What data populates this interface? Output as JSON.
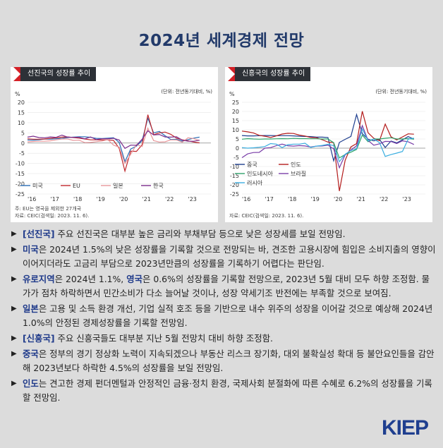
{
  "title": "2024년 세계경제 전망",
  "charts": [
    {
      "tag": "선진국의 성장률 추이",
      "y_unit_label": "%",
      "unit_note": "(단위: 전년동기대비, %)",
      "footnote1": "주: EU는 영국을 제외한 27개국",
      "footnote2": "자료: CEIC(검색일: 2023. 11. 6).",
      "y_ticks": [
        "20",
        "15",
        "10",
        "5",
        "0",
        "-5",
        "-10",
        "-15",
        "-20",
        "-25"
      ],
      "x_ticks": [
        "'16",
        "'17",
        "'18",
        "'19",
        "'20",
        "'21",
        "'22",
        "'23"
      ]
    },
    {
      "tag": "신흥국의 성장률 추이",
      "y_unit_label": "%",
      "unit_note": "(단위: 전년동기대비, %)",
      "footnote1": "",
      "footnote2": "자료: CEIC(검색일: 2023. 11. 6).",
      "y_ticks": [
        "25",
        "20",
        "15",
        "10",
        "5",
        "0",
        "-5",
        "-10",
        "-15",
        "-20",
        "-25"
      ],
      "x_ticks": [
        "'16",
        "'17",
        "'18",
        "'19",
        "'20",
        "'21",
        "'22",
        "'23"
      ]
    }
  ],
  "colors": {
    "us": "#2a6db5",
    "eu": "#c0282d",
    "jp": "#e8979b",
    "kr": "#7b2c8c",
    "cn": "#1f3f8f",
    "in": "#b31b1b",
    "id": "#2fa36b",
    "br": "#7a3ea8",
    "ru": "#3aaee0"
  },
  "chart_data": [
    {
      "type": "line",
      "title": "선진국의 성장률 추이",
      "ylabel": "%",
      "ylim": [
        -25,
        20
      ],
      "x": [
        2016.0,
        2016.25,
        2016.5,
        2016.75,
        2017.0,
        2017.25,
        2017.5,
        2017.75,
        2018.0,
        2018.25,
        2018.5,
        2018.75,
        2019.0,
        2019.25,
        2019.5,
        2019.75,
        2020.0,
        2020.25,
        2020.5,
        2020.75,
        2021.0,
        2021.25,
        2021.5,
        2021.75,
        2022.0,
        2022.25,
        2022.5,
        2022.75,
        2023.0,
        2023.25,
        2023.5
      ],
      "x_tick_labels": [
        "'16",
        "'17",
        "'18",
        "'19",
        "'20",
        "'21",
        "'22",
        "'23"
      ],
      "legend_position": "bottom-left",
      "grid": true,
      "series": [
        {
          "name": "미국",
          "color_key": "us",
          "values": [
            1.5,
            1.4,
            1.6,
            2.0,
            1.9,
            2.1,
            2.3,
            2.7,
            2.9,
            3.1,
            3.1,
            2.8,
            2.3,
            2.2,
            2.4,
            2.6,
            0.3,
            -9.1,
            -2.9,
            -1.5,
            1.2,
            12.2,
            5.0,
            5.7,
            3.6,
            1.8,
            1.9,
            0.9,
            1.7,
            2.4,
            2.9
          ]
        },
        {
          "name": "EU",
          "color_key": "eu",
          "values": [
            2.1,
            1.9,
            1.9,
            2.0,
            2.3,
            2.6,
            2.9,
            3.0,
            2.7,
            2.4,
            2.0,
            1.6,
            1.6,
            1.5,
            1.6,
            1.3,
            -2.6,
            -13.8,
            -4.0,
            -4.1,
            -0.8,
            13.9,
            4.1,
            5.0,
            5.4,
            4.3,
            2.4,
            1.6,
            1.1,
            0.5,
            0.1
          ]
        },
        {
          "name": "일본",
          "color_key": "jp",
          "values": [
            0.6,
            0.8,
            0.9,
            0.9,
            1.1,
            1.6,
            2.0,
            2.0,
            1.3,
            1.4,
            0.2,
            0.3,
            0.7,
            1.0,
            1.7,
            -1.0,
            -2.0,
            -10.0,
            -5.5,
            -0.8,
            -1.7,
            7.3,
            1.2,
            0.5,
            0.6,
            1.6,
            1.5,
            0.4,
            2.6,
            2.2,
            1.2
          ]
        },
        {
          "name": "한국",
          "color_key": "kr",
          "values": [
            2.9,
            3.4,
            2.7,
            2.6,
            3.0,
            2.8,
            3.9,
            2.9,
            2.8,
            2.8,
            2.1,
            3.0,
            1.7,
            2.1,
            2.1,
            2.3,
            1.5,
            -2.6,
            -1.0,
            -1.1,
            1.9,
            6.0,
            4.0,
            4.2,
            3.0,
            2.9,
            3.1,
            1.4,
            0.9,
            0.9,
            1.4
          ]
        }
      ]
    },
    {
      "type": "line",
      "title": "신흥국의 성장률 추이",
      "ylabel": "%",
      "ylim": [
        -25,
        25
      ],
      "x": [
        2016.0,
        2016.25,
        2016.5,
        2016.75,
        2017.0,
        2017.25,
        2017.5,
        2017.75,
        2018.0,
        2018.25,
        2018.5,
        2018.75,
        2019.0,
        2019.25,
        2019.5,
        2019.75,
        2020.0,
        2020.25,
        2020.5,
        2020.75,
        2021.0,
        2021.25,
        2021.5,
        2021.75,
        2022.0,
        2022.25,
        2022.5,
        2022.75,
        2023.0,
        2023.25,
        2023.5
      ],
      "x_tick_labels": [
        "'16",
        "'17",
        "'18",
        "'19",
        "'20",
        "'21",
        "'22",
        "'23"
      ],
      "legend_position": "bottom-left",
      "grid": true,
      "series": [
        {
          "name": "중국",
          "color_key": "cn",
          "values": [
            6.9,
            6.7,
            6.7,
            6.8,
            6.9,
            6.9,
            6.8,
            6.8,
            6.8,
            6.7,
            6.5,
            6.4,
            6.3,
            6.0,
            6.0,
            5.8,
            -6.9,
            3.1,
            4.8,
            6.4,
            18.3,
            7.9,
            4.9,
            4.0,
            4.8,
            0.4,
            3.9,
            2.9,
            4.5,
            6.3,
            4.9
          ]
        },
        {
          "name": "인도",
          "color_key": "in",
          "values": [
            9.3,
            8.9,
            8.3,
            7.0,
            6.5,
            5.8,
            6.7,
            7.7,
            8.1,
            8.0,
            7.1,
            6.6,
            5.8,
            5.7,
            4.6,
            3.3,
            3.0,
            -23.4,
            -6.6,
            0.7,
            2.5,
            20.1,
            8.4,
            5.4,
            4.1,
            13.1,
            6.2,
            4.5,
            6.1,
            7.8,
            7.6
          ]
        },
        {
          "name": "인도네시아",
          "color_key": "id",
          "values": [
            4.9,
            5.2,
            5.0,
            4.9,
            5.0,
            5.0,
            5.1,
            5.2,
            5.1,
            5.3,
            5.2,
            5.2,
            5.1,
            5.1,
            5.0,
            5.0,
            3.0,
            -5.3,
            -3.5,
            -2.2,
            -0.7,
            7.1,
            3.5,
            5.0,
            5.0,
            5.4,
            5.7,
            5.0,
            5.0,
            5.2,
            4.9
          ]
        },
        {
          "name": "브라질",
          "color_key": "br",
          "values": [
            -5.2,
            -3.1,
            -2.4,
            -2.3,
            0.0,
            0.3,
            1.4,
            2.2,
            1.3,
            1.1,
            1.4,
            1.2,
            0.6,
            1.1,
            1.2,
            1.6,
            -0.4,
            -10.7,
            -3.6,
            -1.0,
            1.3,
            12.3,
            4.2,
            1.6,
            2.4,
            3.7,
            3.6,
            2.5,
            4.0,
            3.5,
            2.0
          ]
        },
        {
          "name": "러시아",
          "color_key": "ru",
          "values": [
            0.3,
            0.0,
            0.2,
            0.5,
            0.9,
            2.5,
            2.2,
            0.3,
            1.9,
            2.2,
            2.2,
            2.7,
            0.4,
            1.1,
            1.5,
            2.1,
            1.4,
            -7.4,
            -3.3,
            -1.3,
            -0.3,
            10.5,
            4.0,
            5.0,
            3.0,
            -4.5,
            -3.5,
            -2.7,
            -1.8,
            4.9,
            5.5
          ]
        }
      ]
    }
  ],
  "bullets": [
    {
      "hl": "[선진국]",
      "text": " 주요 선진국은 대부분 높은 금리와 부채부담 등으로 낮은 성장세를 보일 전망임."
    },
    {
      "hl": "미국",
      "text": "은 2024년 1.5%의 낮은 성장률을 기록할 것으로 전망되는 바, 견조한 고용시장에 힘입은 소비지출의 영향이 이어지더라도 고금리 부담으로 2023년만큼의 성장률을 기록하기 어렵다는 판단임."
    },
    {
      "hl": "유로지역",
      "text": "은 2024년 1.1%, ",
      "hl2": "영국",
      "text2": "은 0.6%의 성장률을 기록할 전망으로, 2023년 5월 대비 모두 하향 조정함. 물가가 점차 하락하면서 민간소비가 다소 늘어날 것이나, 성장 약세기조 반전에는 부족할 것으로 보여짐."
    },
    {
      "hl": "일본",
      "text": "은 고용 및 소득 환경 개선, 기업 실적 호조 등을 기반으로 내수 위주의 성장을 이어갈 것으로 예상해 2024년 1.0%의 안정된 경제성장률을 기록할 전망임."
    },
    {
      "hl": "[신흥국]",
      "text": " 주요 신흥국들도 대부분 지난 5월 전망치 대비 하향 조정함."
    },
    {
      "hl": "중국",
      "text": "은 정부의 경기 정상화 노력이 지속되겠으나 부동산 리스크 장기화, 대외 불확실성  확대 등 불안요인들을 감안해 2023년보다 하락한 4.5%의 성장률을 보일 전망임."
    },
    {
      "hl": "인도",
      "text": "는 견고한 경제 펀더멘털과 안정적인 금융·정치 환경, 국제사회 분절화에 따른 수혜로 6.2%의 성장률을 기록할 전망임."
    }
  ],
  "logo": {
    "main": "KIEP"
  }
}
